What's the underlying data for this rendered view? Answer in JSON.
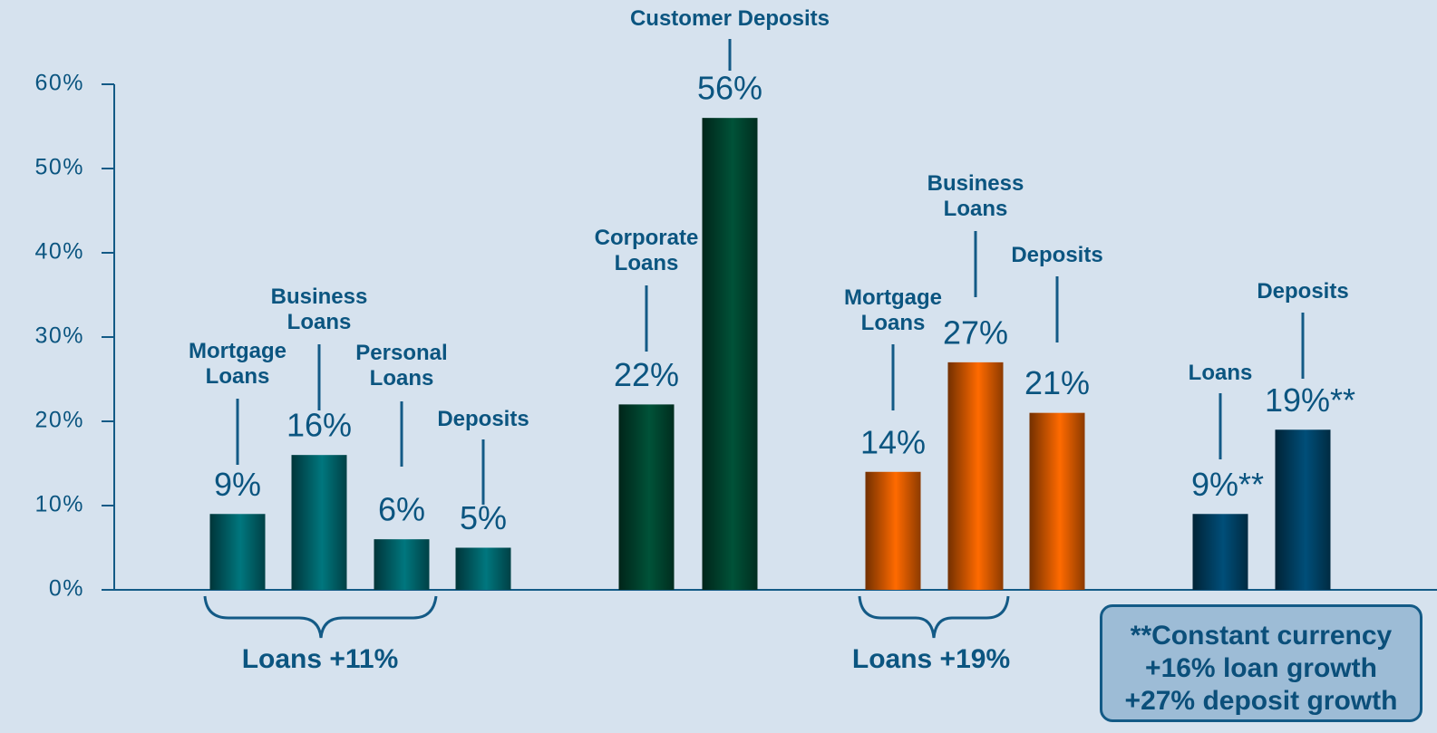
{
  "chart_data": {
    "type": "bar",
    "categories": [
      "Mortgage Loans",
      "Business Loans",
      "Personal Loans",
      "Deposits",
      "Corporate Loans",
      "Customer Deposits",
      "Mortgage Loans",
      "Business Loans",
      "Deposits",
      "Loans",
      "Deposits"
    ],
    "values": [
      9,
      16,
      6,
      5,
      22,
      56,
      14,
      27,
      21,
      9,
      19
    ],
    "value_labels": [
      "9%",
      "16%",
      "6%",
      "5%",
      "22%",
      "56%",
      "14%",
      "27%",
      "21%",
      "9%**",
      "19%**"
    ],
    "colors": [
      "#00767e",
      "#00767e",
      "#00767e",
      "#00767e",
      "#005238",
      "#005238",
      "#ff6a00",
      "#ff6a00",
      "#ff6a00",
      "#004e78",
      "#004e78"
    ],
    "ylim": [
      0,
      60
    ],
    "yticks": [
      {
        "value": 0,
        "label": "0%"
      },
      {
        "value": 10,
        "label": "10%"
      },
      {
        "value": 20,
        "label": "20%"
      },
      {
        "value": 30,
        "label": "30%"
      },
      {
        "value": 40,
        "label": "40%"
      },
      {
        "value": 50,
        "label": "50%"
      },
      {
        "value": 60,
        "label": "60%"
      }
    ],
    "annotations": [
      "Loans +11%",
      "Loans +19%"
    ],
    "note": [
      "**Constant currency",
      "+16% loan growth",
      "+27% deposit growth"
    ]
  }
}
